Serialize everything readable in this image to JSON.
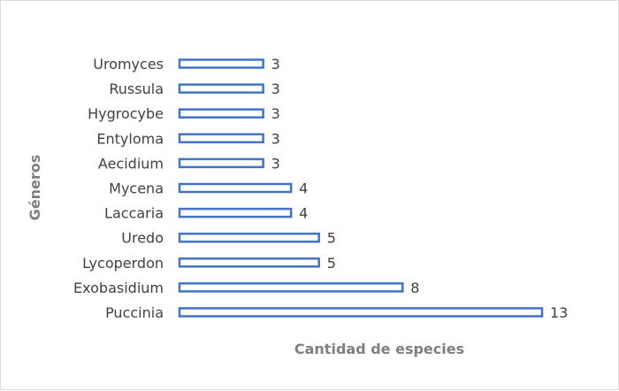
{
  "chart_data": {
    "type": "bar",
    "orientation": "horizontal",
    "categories": [
      "Puccinia",
      "Exobasidium",
      "Lycoperdon",
      "Uredo",
      "Laccaria",
      "Mycena",
      "Aecidium",
      "Entyloma",
      "Hygrocybe",
      "Russula",
      "Uromyces"
    ],
    "series": [
      {
        "values": [
          13,
          8,
          5,
          5,
          4,
          4,
          3,
          3,
          3,
          3,
          3
        ]
      }
    ],
    "title": "",
    "xlabel": "Cantidad de especies",
    "ylabel": "Géneros",
    "xlim": [
      0,
      13
    ],
    "grid": false,
    "legend": "none",
    "data_labels": true,
    "colors": {
      "bar_stroke": "#4472c4",
      "bar_fill": "#ffffff",
      "label_text": "#404040",
      "axis_title_text": "#7f7f7f",
      "frame": "#d9d9d9"
    }
  }
}
